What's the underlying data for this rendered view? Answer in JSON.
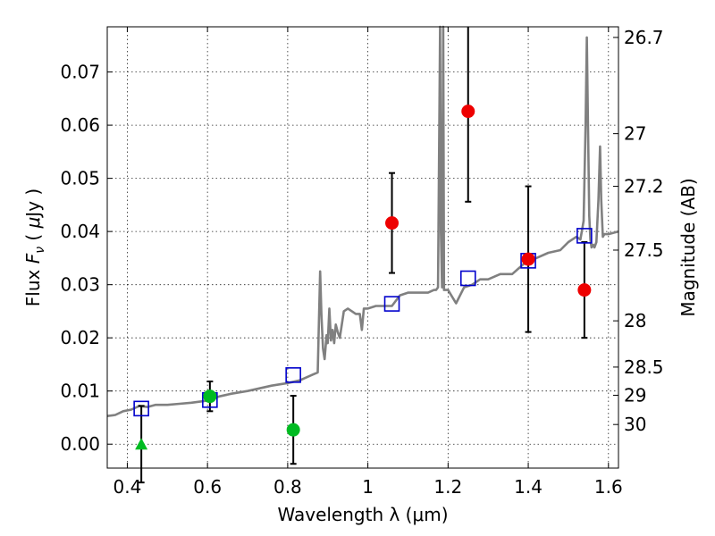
{
  "chart_data": {
    "type": "scatter",
    "xlabel": "Wavelength  λ (μm)",
    "ylabel": "Flux  F_ν  ( μJy )",
    "ylabel_parts": [
      "Flux  ",
      "F",
      "ν",
      "  ( ",
      "μ",
      "Jy )"
    ],
    "y2label": "Magnitude (AB)",
    "xlim": [
      0.35,
      1.625
    ],
    "ylim": [
      -0.0045,
      0.0785
    ],
    "xticks": [
      0.4,
      0.6,
      0.8,
      1.0,
      1.2,
      1.4,
      1.6
    ],
    "xtick_labels": [
      "0.4",
      "0.6",
      "0.8",
      "1",
      "1.2",
      "1.4",
      "1.6"
    ],
    "yticks": [
      0.0,
      0.01,
      0.02,
      0.03,
      0.04,
      0.05,
      0.06,
      0.07
    ],
    "ytick_labels": [
      "0.00",
      "0.01",
      "0.02",
      "0.03",
      "0.04",
      "0.05",
      "0.06",
      "0.07"
    ],
    "y2ticks": [
      {
        "flux": 0.0765,
        "label": "26.7"
      },
      {
        "flux": 0.0584,
        "label": "27"
      },
      {
        "flux": 0.0485,
        "label": "27.2"
      },
      {
        "flux": 0.0365,
        "label": "27.5"
      },
      {
        "flux": 0.0232,
        "label": "28"
      },
      {
        "flux": 0.0145,
        "label": "28.5"
      },
      {
        "flux": 0.0092,
        "label": "29"
      },
      {
        "flux": 0.0037,
        "label": "30"
      }
    ],
    "grid": true,
    "model_spectrum": {
      "color": "#808080",
      "x": [
        0.35,
        0.37,
        0.39,
        0.41,
        0.43,
        0.45,
        0.47,
        0.5,
        0.53,
        0.56,
        0.6,
        0.63,
        0.66,
        0.7,
        0.73,
        0.76,
        0.8,
        0.83,
        0.86,
        0.875,
        0.878,
        0.881,
        0.884,
        0.888,
        0.892,
        0.897,
        0.9,
        0.904,
        0.908,
        0.912,
        0.916,
        0.92,
        0.925,
        0.93,
        0.94,
        0.95,
        0.96,
        0.97,
        0.98,
        0.985,
        0.99,
        1.0,
        1.02,
        1.04,
        1.06,
        1.08,
        1.1,
        1.13,
        1.15,
        1.165,
        1.17,
        1.175,
        1.18,
        1.182,
        1.185,
        1.188,
        1.19,
        1.2,
        1.22,
        1.24,
        1.26,
        1.28,
        1.3,
        1.33,
        1.36,
        1.39,
        1.42,
        1.45,
        1.48,
        1.5,
        1.52,
        1.53,
        1.538,
        1.543,
        1.546,
        1.549,
        1.552,
        1.555,
        1.558,
        1.562,
        1.565,
        1.57,
        1.575,
        1.579,
        1.582,
        1.586,
        1.59,
        1.6,
        1.625
      ],
      "y": [
        0.0053,
        0.0055,
        0.0062,
        0.0065,
        0.0072,
        0.007,
        0.0074,
        0.0074,
        0.0076,
        0.0078,
        0.0082,
        0.009,
        0.0095,
        0.01,
        0.0105,
        0.011,
        0.0115,
        0.012,
        0.013,
        0.0135,
        0.0235,
        0.0325,
        0.0245,
        0.018,
        0.016,
        0.0205,
        0.019,
        0.0255,
        0.0195,
        0.0215,
        0.019,
        0.0225,
        0.021,
        0.02,
        0.025,
        0.0255,
        0.025,
        0.0245,
        0.0245,
        0.0215,
        0.0255,
        0.0255,
        0.026,
        0.026,
        0.026,
        0.028,
        0.0285,
        0.0285,
        0.0285,
        0.029,
        0.029,
        0.0295,
        0.0785,
        0.04,
        0.0295,
        0.0785,
        0.029,
        0.029,
        0.0265,
        0.0295,
        0.03,
        0.031,
        0.031,
        0.032,
        0.032,
        0.034,
        0.035,
        0.036,
        0.0365,
        0.038,
        0.039,
        0.0385,
        0.042,
        0.06,
        0.0765,
        0.06,
        0.043,
        0.0385,
        0.037,
        0.0375,
        0.037,
        0.038,
        0.046,
        0.056,
        0.046,
        0.039,
        0.0395,
        0.0395,
        0.04
      ]
    },
    "model_photometry": {
      "color": "#0000cc",
      "x": [
        0.435,
        0.606,
        0.814,
        1.06,
        1.25,
        1.4,
        1.54
      ],
      "y": [
        0.0067,
        0.0083,
        0.013,
        0.0264,
        0.0312,
        0.0345,
        0.0392
      ]
    },
    "detections_green": {
      "color": "#00bb22",
      "x": [
        0.606,
        0.814
      ],
      "y": [
        0.009,
        0.0027
      ],
      "err": [
        0.0028,
        0.0064
      ]
    },
    "upper_limit_green": {
      "color": "#00bb22",
      "x": [
        0.435
      ],
      "y": [
        0.0
      ],
      "err": [
        0.0072
      ]
    },
    "detections_red": {
      "color": "#ee0000",
      "x": [
        1.06,
        1.25,
        1.4,
        1.54
      ],
      "y": [
        0.0416,
        0.0626,
        0.0348,
        0.029
      ],
      "err": [
        0.0094,
        0.017,
        0.0137,
        0.009
      ]
    }
  }
}
